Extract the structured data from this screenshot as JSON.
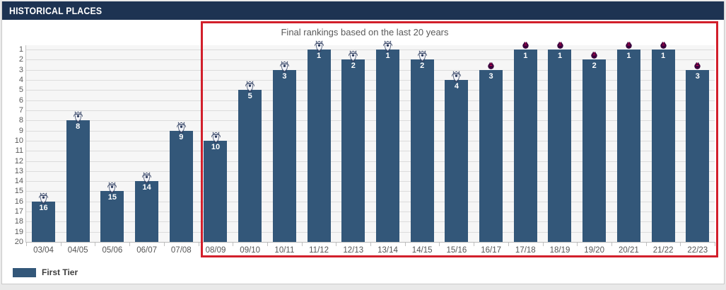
{
  "panel": {
    "title": "HISTORICAL PLACES"
  },
  "annotation": "Final rankings based on the last 20 years",
  "legend": {
    "label": "First Tier",
    "swatch_color": "#335779"
  },
  "colors": {
    "header_bg": "#1d3352",
    "bar": "#335779",
    "highlight_border": "#d21f2b",
    "plot_bg": "#f6f6f6",
    "gridline": "#dcdcdc",
    "axis_text": "#595959",
    "lion_purple": "#38003c",
    "lion_magenta": "#e90052"
  },
  "chart_data": {
    "type": "bar",
    "title": "HISTORICAL PLACES",
    "annotation": "Final rankings based on the last 20 years",
    "categories": [
      "03/04",
      "04/05",
      "05/06",
      "06/07",
      "07/08",
      "08/09",
      "09/10",
      "10/11",
      "11/12",
      "12/13",
      "13/14",
      "14/15",
      "15/16",
      "16/17",
      "17/18",
      "18/19",
      "19/20",
      "20/21",
      "21/22",
      "22/23"
    ],
    "values": [
      16,
      8,
      15,
      14,
      9,
      10,
      5,
      3,
      1,
      2,
      1,
      2,
      4,
      3,
      1,
      1,
      2,
      1,
      1,
      3
    ],
    "bar_icons": [
      "classic-trophy",
      "classic-trophy",
      "classic-trophy",
      "classic-trophy",
      "classic-trophy",
      "classic-trophy",
      "classic-trophy",
      "classic-trophy",
      "classic-trophy",
      "classic-trophy",
      "classic-trophy",
      "classic-trophy",
      "classic-trophy",
      "lion-crest",
      "lion-crest",
      "lion-crest",
      "lion-crest",
      "lion-crest",
      "lion-crest",
      "lion-crest"
    ],
    "y_ticks": [
      1,
      2,
      3,
      4,
      5,
      6,
      7,
      8,
      9,
      10,
      11,
      12,
      13,
      14,
      15,
      16,
      17,
      18,
      19,
      20
    ],
    "ylim": [
      1,
      20
    ],
    "y_axis_inverted": true,
    "grid": true,
    "legend_entries": [
      "First Tier"
    ],
    "legend_position": "bottom-left",
    "highlight_box": {
      "from_category": "08/09",
      "to_category": "22/23"
    }
  }
}
